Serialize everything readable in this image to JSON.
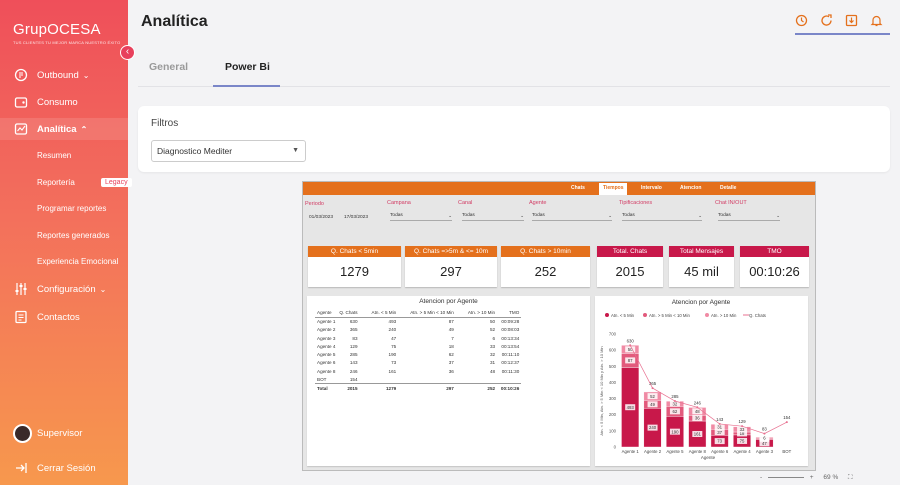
{
  "brand": {
    "logo_text": "GrupOCESA",
    "tagline": "TUS CLIENTES TU MEJOR MARCA NUESTRO ÉXITO"
  },
  "sidebar": {
    "items": [
      {
        "label": "Outbound",
        "icon": "phone-icon",
        "chevron": "v"
      },
      {
        "label": "Consumo",
        "icon": "wallet-icon"
      },
      {
        "label": "Analítica",
        "icon": "analytics-icon",
        "chevron": "^"
      },
      {
        "label": "Configuración",
        "icon": "sliders-icon",
        "chevron": "v"
      },
      {
        "label": "Contactos",
        "icon": "contacts-icon"
      }
    ],
    "sub_items": [
      "Resumen",
      "Reportería",
      "Programar reportes",
      "Reportes generados",
      "Experiencia Emocional"
    ],
    "legacy_badge": "Legacy",
    "user": "Supervisor",
    "logout": "Cerrar Sesión",
    "collapse_icon": "‹"
  },
  "header": {
    "title": "Analítica",
    "icons": [
      "history-icon",
      "refresh-icon",
      "download-icon",
      "bell-icon"
    ]
  },
  "tabs": [
    {
      "label": "General",
      "active": false
    },
    {
      "label": "Power Bi",
      "active": true
    }
  ],
  "filters": {
    "title": "Filtros",
    "select_value": "Diagnostico Mediter"
  },
  "powerbi": {
    "nav": [
      "Chats",
      "Tiempos",
      "Intervalo",
      "Atencion",
      "Detalle"
    ],
    "active_nav": "Tiempos",
    "filters": [
      {
        "label": "Periodo",
        "values": [
          "01/03/2023",
          "17/03/2023"
        ]
      },
      {
        "label": "Campana",
        "value": "Todas"
      },
      {
        "label": "Canal",
        "value": "Todas"
      },
      {
        "label": "Agente",
        "value": "Todas"
      },
      {
        "label": "Tipificaciones",
        "value": "Todas"
      },
      {
        "label": "Chat IN/OUT",
        "value": "Todas"
      }
    ],
    "kpis": [
      {
        "label": "Q. Chats < 5min",
        "value": "1279",
        "color": "#e4701c"
      },
      {
        "label": "Q. Chats =>5m & <= 10m",
        "value": "297",
        "color": "#e4701c"
      },
      {
        "label": "Q. Chats > 10min",
        "value": "252",
        "color": "#e4701c"
      },
      {
        "label": "Total. Chats",
        "value": "2015",
        "color": "#c8184a"
      },
      {
        "label": "Total Mensajes",
        "value": "45 mil",
        "color": "#c8184a"
      },
      {
        "label": "TMO",
        "value": "00:10:26",
        "color": "#c8184a"
      }
    ],
    "table": {
      "title": "Atencion por Agente",
      "headers": [
        "Agente",
        "Q. Chats",
        "Atn. < 5 Min",
        "Atn. > 5 Min < 10 Min",
        "Atn. > 10 Min",
        "TMO"
      ],
      "rows": [
        [
          "Agente 1",
          "630",
          "493",
          "87",
          "50",
          "00:09:28"
        ],
        [
          "Agente 2",
          "365",
          "240",
          "49",
          "52",
          "00:08:03"
        ],
        [
          "Agente 3",
          "83",
          "47",
          "7",
          "6",
          "00:13:34"
        ],
        [
          "Agente 4",
          "129",
          "75",
          "18",
          "33",
          "00:13:54"
        ],
        [
          "Agente 5",
          "285",
          "190",
          "62",
          "32",
          "00:11:10"
        ],
        [
          "Agente 6",
          "143",
          "73",
          "37",
          "31",
          "00:12:37"
        ],
        [
          "Agente 8",
          "246",
          "161",
          "36",
          "48",
          "00:11:30"
        ],
        [
          "BOT",
          "154",
          "",
          "",
          "",
          ""
        ]
      ],
      "total": [
        "Total",
        "2015",
        "1279",
        "297",
        "252",
        "00:10:26"
      ]
    }
  },
  "chart_data": {
    "type": "bar",
    "title": "Atencion por Agente",
    "legend": [
      "Atn. < 5 Min",
      "Atn. > 5 Min < 10 Min",
      "Atn. > 10 Min",
      "Q. Chats"
    ],
    "legend_position": "top",
    "categories": [
      "Agente 1",
      "Agente 2",
      "Agente 5",
      "Agente 8",
      "Agente 6",
      "Agente 4",
      "Agente 3",
      "BOT"
    ],
    "series": [
      {
        "name": "Atn. < 5 Min",
        "values": [
          493,
          240,
          190,
          161,
          73,
          75,
          47,
          0
        ],
        "color": "#c8184a"
      },
      {
        "name": "Atn. > 5 Min < 10 Min",
        "values": [
          87,
          49,
          62,
          36,
          37,
          18,
          7,
          0
        ],
        "color": "#e25a7c"
      },
      {
        "name": "Atn. > 10 Min",
        "values": [
          50,
          52,
          32,
          48,
          31,
          33,
          6,
          0
        ],
        "color": "#f08aa4"
      },
      {
        "name": "Q. Chats",
        "values": [
          630,
          365,
          285,
          246,
          143,
          129,
          83,
          154
        ],
        "color": "#e87090"
      }
    ],
    "labels_inside": [
      "493",
      "87",
      "50",
      "240",
      "49",
      "52",
      "190",
      "62",
      "32",
      "161",
      "36",
      "48",
      "73",
      "37",
      "31",
      "75",
      "18",
      "33",
      "47",
      "7",
      "6"
    ],
    "ylabel": "Atn. < 5 Min, Atn. > 5 Min < 10 Min y Atn. > 10 Min",
    "xlabel": "Agente",
    "ylim": [
      0,
      700
    ],
    "yticks": [
      "0",
      "100",
      "200",
      "300",
      "400",
      "500",
      "600",
      "700"
    ]
  },
  "footer": {
    "zoom": "69 %"
  }
}
